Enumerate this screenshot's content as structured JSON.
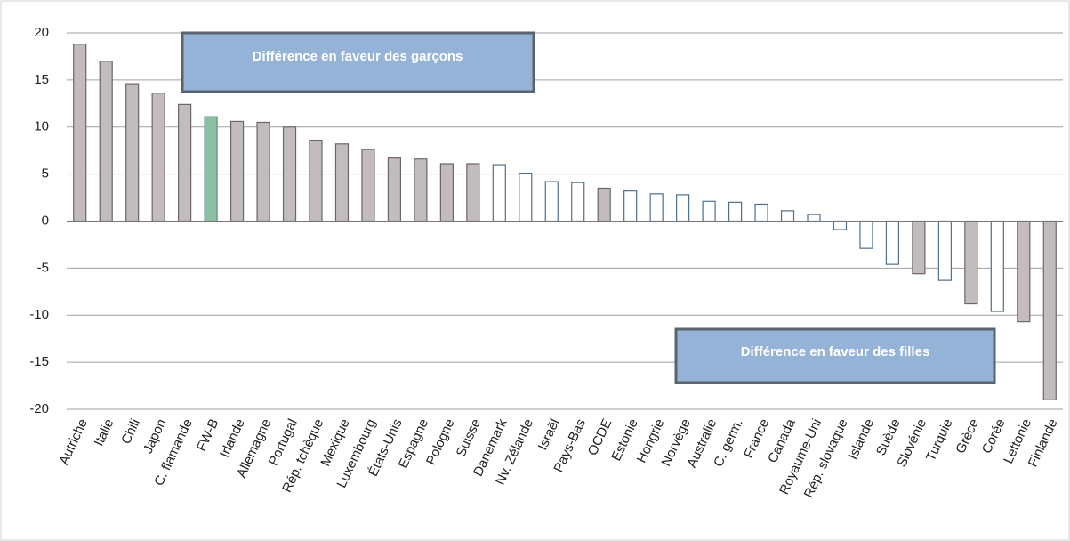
{
  "chart_data": {
    "type": "bar",
    "categories": [
      "Autriche",
      "Italie",
      "Chili",
      "Japon",
      "C. flamande",
      "FW-B",
      "Irlande",
      "Allemagne",
      "Portugal",
      "Rép. tchèque",
      "Mexique",
      "Luxembourg",
      "États-Unis",
      "Espagne",
      "Pologne",
      "Suisse",
      "Danemark",
      "Nv. Zélande",
      "Israël",
      "Pays-Bas",
      "OCDE",
      "Estonie",
      "Hongrie",
      "Norvège",
      "Australie",
      "C. germ.",
      "France",
      "Canada",
      "Royaume-Uni",
      "Rép. slovaque",
      "Islande",
      "Suède",
      "Slovénie",
      "Turquie",
      "Grèce",
      "Corée",
      "Lettonie",
      "Finlande"
    ],
    "values": [
      18.8,
      17,
      14.6,
      13.6,
      12.4,
      11.1,
      10.6,
      10.5,
      10,
      8.6,
      8.2,
      7.6,
      6.7,
      6.6,
      6.1,
      6.1,
      6.0,
      5.1,
      4.2,
      4.1,
      3.5,
      3.2,
      2.9,
      2.8,
      2.1,
      2.0,
      1.8,
      1.1,
      0.7,
      -0.9,
      -2.9,
      -4.6,
      -5.6,
      -6.3,
      -8.8,
      -9.6,
      -10.7,
      -19.0
    ],
    "colors": [
      "#c3bcbc",
      "#c3bcbc",
      "#c3bcbc",
      "#c3bcbc",
      "#c3bcbc",
      "#8dbfa5",
      "#c3bcbc",
      "#c3bcbc",
      "#c3bcbc",
      "#c3bcbc",
      "#c3bcbc",
      "#c3bcbc",
      "#c3bcbc",
      "#c3bcbc",
      "#c3bcbc",
      "#c3bcbc",
      "#ffffff",
      "#ffffff",
      "#ffffff",
      "#ffffff",
      "#c3bcbc",
      "#ffffff",
      "#ffffff",
      "#ffffff",
      "#ffffff",
      "#ffffff",
      "#ffffff",
      "#ffffff",
      "#ffffff",
      "#ffffff",
      "#ffffff",
      "#ffffff",
      "#c3bcbc",
      "#ffffff",
      "#c3bcbc",
      "#ffffff",
      "#c3bcbc",
      "#c3bcbc"
    ],
    "edgecolors": [
      "#6e6666",
      "#6e6666",
      "#6e6666",
      "#6e6666",
      "#6e6666",
      "#5e8f78",
      "#6e6666",
      "#6e6666",
      "#6e6666",
      "#6e6666",
      "#6e6666",
      "#6e6666",
      "#6e6666",
      "#6e6666",
      "#6e6666",
      "#6e6666",
      "#4d6f8f",
      "#4d6f8f",
      "#4d6f8f",
      "#4d6f8f",
      "#6e6666",
      "#4d6f8f",
      "#4d6f8f",
      "#4d6f8f",
      "#4d6f8f",
      "#4d6f8f",
      "#4d6f8f",
      "#4d6f8f",
      "#4d6f8f",
      "#4d6f8f",
      "#4d6f8f",
      "#4d6f8f",
      "#6e6666",
      "#4d6f8f",
      "#6e6666",
      "#4d6f8f",
      "#6e6666",
      "#6e6666"
    ],
    "ylim": [
      -20,
      20
    ],
    "yticks": [
      -20,
      -15,
      -10,
      -5,
      0,
      5,
      10,
      15,
      20
    ],
    "grid": true,
    "annotations": [
      "Différence en faveur des garçons",
      "Différence en faveur des filles"
    ]
  }
}
